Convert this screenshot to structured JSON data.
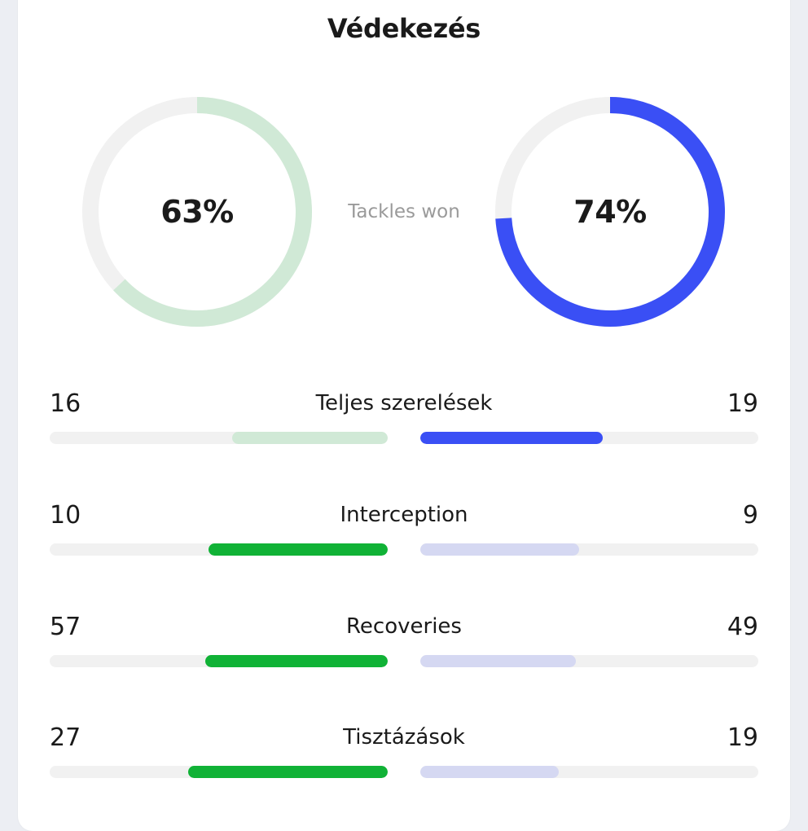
{
  "panel": {
    "title": "Védekezés",
    "center_label": "Tackles won",
    "donuts": {
      "left": {
        "percent_label": "63%",
        "value": 63,
        "color": "#d0e9d6",
        "track_color": "#f1f1f1"
      },
      "right": {
        "percent_label": "74%",
        "value": 74,
        "color": "#3a4ff5",
        "track_color": "#f1f1f1"
      }
    }
  },
  "stats": [
    {
      "label": "Teljes szerelések",
      "left": "16",
      "right": "19",
      "left_fill": 0.46,
      "right_fill": 0.54,
      "left_color": "#d0e9d6",
      "right_color": "#3a4ff5"
    },
    {
      "label": "Interception",
      "left": "10",
      "right": "9",
      "left_fill": 0.53,
      "right_fill": 0.47,
      "left_color": "#10b236",
      "right_color": "#d5d8f2"
    },
    {
      "label": "Recoveries",
      "left": "57",
      "right": "49",
      "left_fill": 0.54,
      "right_fill": 0.46,
      "left_color": "#10b236",
      "right_color": "#d5d8f2"
    },
    {
      "label": "Tisztázások",
      "left": "27",
      "right": "19",
      "left_fill": 0.59,
      "right_fill": 0.41,
      "left_color": "#10b236",
      "right_color": "#d5d8f2"
    }
  ]
}
